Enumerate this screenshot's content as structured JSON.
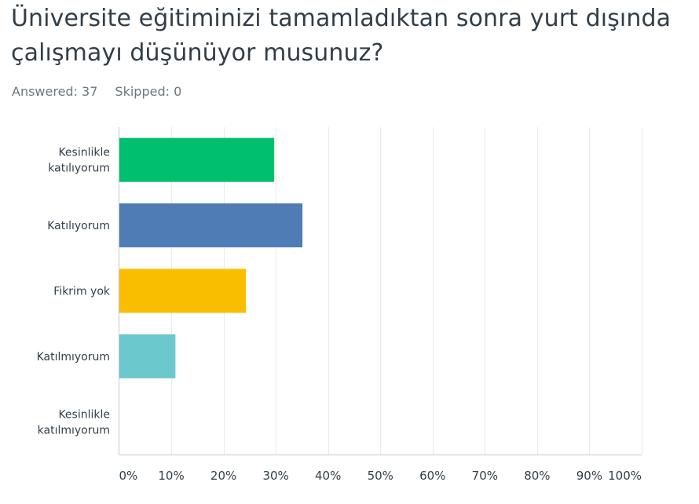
{
  "question": {
    "title": "Üniversite eğitiminizi tamamladıktan sonra yurt dışında çalışmayı düşünüyor musunuz?"
  },
  "stats": {
    "answered": "Answered: 37",
    "skipped": "Skipped: 0"
  },
  "chart_data": {
    "type": "bar",
    "orientation": "horizontal",
    "title": "Üniversite eğitiminizi tamamladıktan sonra yurt dışında çalışmayı düşünüyor musunuz?",
    "categories": [
      [
        "Kesinlikle",
        "katılıyorum"
      ],
      [
        "Katılıyorum"
      ],
      [
        "Fikrim yok"
      ],
      [
        "Katılmıyorum"
      ],
      [
        "Kesinlikle",
        "katılmıyorum"
      ]
    ],
    "values": [
      29.7,
      35.1,
      24.3,
      10.8,
      0
    ],
    "colors": [
      "#00bf6f",
      "#507cb6",
      "#f9be00",
      "#6bc8cd",
      "#ff8b4f"
    ],
    "xlim": [
      0,
      100
    ],
    "x_ticks": [
      "0%",
      "10%",
      "20%",
      "30%",
      "40%",
      "50%",
      "60%",
      "70%",
      "80%",
      "90%",
      "100%"
    ],
    "grid": true,
    "xlabel": "",
    "ylabel": ""
  }
}
